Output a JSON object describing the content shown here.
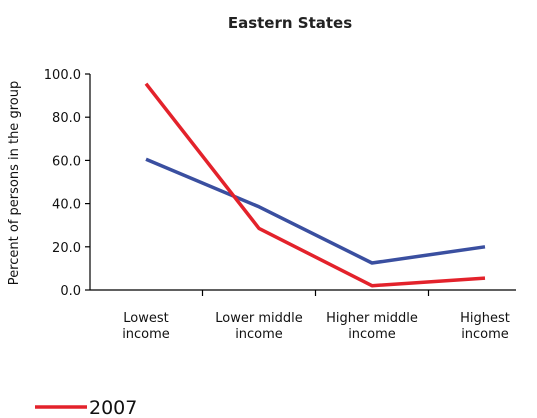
{
  "chart_data": {
    "type": "line",
    "title": "Eastern States",
    "xlabel": "",
    "ylabel": "Percent of persons in the group",
    "categories": [
      [
        "Lowest",
        "income"
      ],
      [
        "Lower middle",
        "income"
      ],
      [
        "Higher middle",
        "income"
      ],
      [
        "Highest",
        "income"
      ]
    ],
    "ylim": [
      0,
      100
    ],
    "yticks": [
      "0.0",
      "20.0",
      "40.0",
      "60.0",
      "80.0",
      "100.0"
    ],
    "grid": false,
    "legend_position": "bottom-left",
    "series": [
      {
        "name": "",
        "color": "#3a4fa0",
        "values": [
          60.5,
          38.5,
          12.5,
          20.0
        ]
      },
      {
        "name": "2007",
        "color": "#e3222b",
        "values": [
          95.5,
          28.5,
          2.0,
          5.5
        ]
      }
    ],
    "legend": [
      {
        "label": "2007",
        "color": "#e3222b"
      }
    ]
  }
}
